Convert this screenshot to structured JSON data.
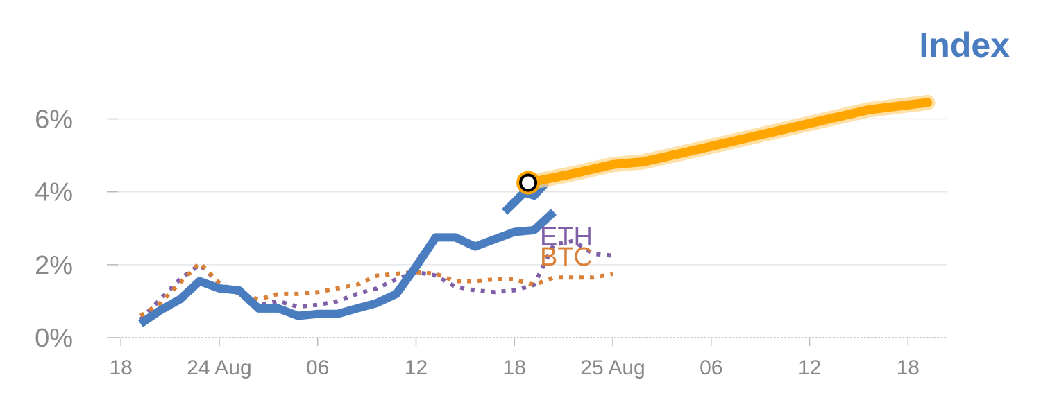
{
  "chart_data": {
    "type": "line",
    "title": "Index",
    "xlabel": "",
    "ylabel": "",
    "ylim": [
      0,
      6.6
    ],
    "y_ticks": [
      0,
      2,
      4,
      6
    ],
    "y_tick_labels": [
      "0%",
      "2%",
      "4%",
      "6%"
    ],
    "grid": true,
    "x_ticks": [
      0,
      5,
      10,
      15,
      20,
      25,
      30,
      35,
      40
    ],
    "x_tick_labels": [
      "18",
      "24 Aug",
      "06",
      "12",
      "18",
      "25 Aug",
      "06",
      "12",
      "18"
    ],
    "xlim": [
      -0.5,
      42
    ],
    "series": [
      {
        "name": "",
        "style": "solid",
        "x": [
          1,
          2,
          3,
          4,
          5,
          6,
          7,
          8,
          9,
          10,
          11,
          12,
          13,
          14,
          15,
          16,
          17,
          18,
          19,
          20,
          21,
          22
        ],
        "y": [
          0.38,
          0.75,
          1.05,
          1.55,
          1.35,
          1.3,
          0.8,
          0.8,
          0.6,
          0.65,
          0.65,
          0.8,
          0.95,
          1.2,
          1.95,
          2.75,
          2.75,
          2.5,
          2.7,
          2.9,
          2.95,
          3.45
        ]
      },
      {
        "name": "",
        "style": "solid-tail",
        "x": [
          19.5,
          20.5,
          21,
          21.6
        ],
        "y": [
          3.45,
          3.98,
          3.9,
          4.25
        ]
      },
      {
        "name": "ETH",
        "style": "dotted",
        "x": [
          1,
          2,
          3,
          4,
          5,
          6,
          7,
          8,
          9,
          10,
          11,
          12,
          13,
          14,
          15,
          16,
          17,
          18,
          19,
          20,
          21,
          22,
          23,
          24,
          25
        ],
        "y": [
          0.5,
          1.05,
          1.6,
          2.0,
          1.5,
          1.2,
          0.9,
          1.0,
          0.85,
          0.9,
          1.0,
          1.2,
          1.35,
          1.6,
          1.8,
          1.7,
          1.4,
          1.3,
          1.25,
          1.3,
          1.45,
          2.55,
          2.65,
          2.3,
          2.25
        ]
      },
      {
        "name": "BTC",
        "style": "dotted",
        "x": [
          1,
          2,
          3,
          4,
          5,
          6,
          7,
          8,
          9,
          10,
          11,
          12,
          13,
          14,
          15,
          16,
          17,
          18,
          19,
          20,
          21,
          22,
          23,
          24,
          25
        ],
        "y": [
          0.6,
          0.95,
          1.5,
          2.05,
          1.5,
          1.2,
          1.05,
          1.2,
          1.2,
          1.25,
          1.35,
          1.45,
          1.7,
          1.75,
          1.8,
          1.75,
          1.55,
          1.55,
          1.6,
          1.6,
          1.45,
          1.65,
          1.65,
          1.65,
          1.75
        ]
      },
      {
        "name": "",
        "style": "forecast",
        "x": [
          20.7,
          23,
          25,
          26.5,
          28,
          30,
          32,
          34,
          36,
          38,
          39.5,
          41
        ],
        "y": [
          4.25,
          4.5,
          4.75,
          4.82,
          5.0,
          5.25,
          5.5,
          5.75,
          6.0,
          6.25,
          6.35,
          6.45
        ]
      }
    ],
    "marker": {
      "x": 20.7,
      "y": 4.25
    },
    "colors": {
      "title": "#4a7cc0",
      "solid": "#4a7cc0",
      "eth": "#7f5fa8",
      "btc": "#d98036",
      "forecast": "#ffa500",
      "forecast_halo": "#ffd58a",
      "grid": "#e6e6e6",
      "axis": "#bbbbbb",
      "tick_text": "#888888"
    }
  }
}
